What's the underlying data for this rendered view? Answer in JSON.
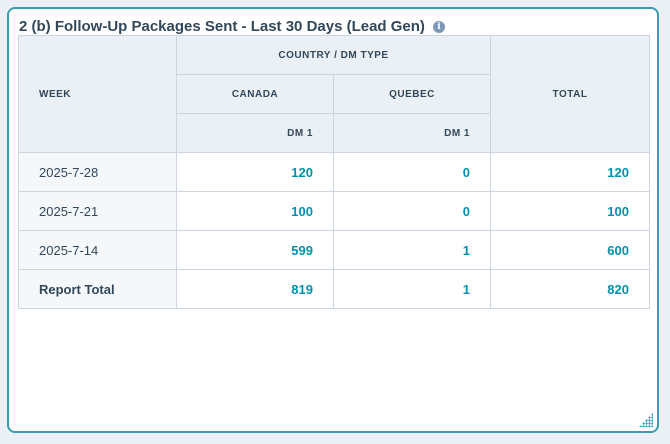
{
  "report": {
    "title": "2 (b) Follow-Up Packages Sent - Last 30 Days (Lead Gen)",
    "info_icon": "i"
  },
  "table": {
    "headers": {
      "week": "WEEK",
      "group": "COUNTRY / DM TYPE",
      "canada": "CANADA",
      "quebec": "QUEBEC",
      "dm_canada": "DM 1",
      "dm_quebec": "DM 1",
      "total": "TOTAL"
    },
    "rows": [
      {
        "week": "2025-7-28",
        "canada": "120",
        "quebec": "0",
        "total": "120"
      },
      {
        "week": "2025-7-21",
        "canada": "100",
        "quebec": "0",
        "total": "100"
      },
      {
        "week": "2025-7-14",
        "canada": "599",
        "quebec": "1",
        "total": "600"
      }
    ],
    "report_total": {
      "label": "Report Total",
      "canada": "819",
      "quebec": "1",
      "total": "820"
    }
  },
  "colors": {
    "accent": "#0091ae",
    "border": "#3e9bb5",
    "header_bg": "#eaf0f6"
  }
}
